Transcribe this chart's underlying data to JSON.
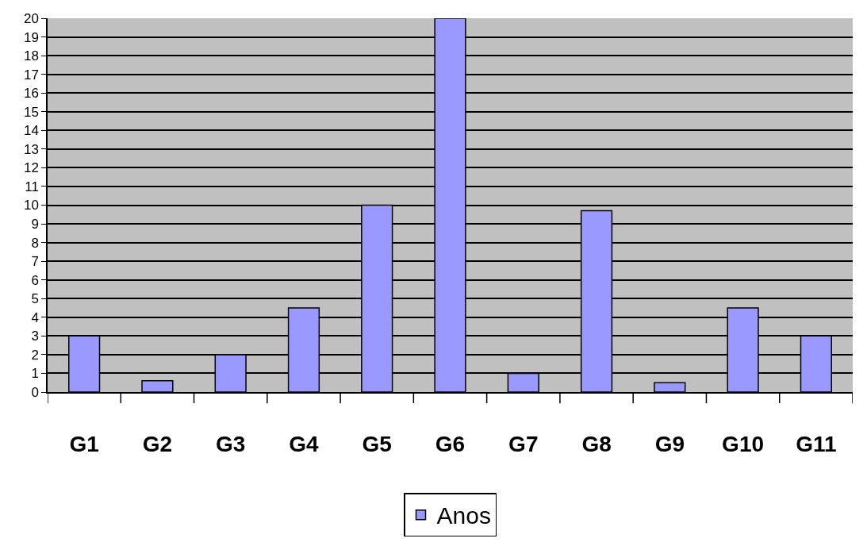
{
  "chart_data": {
    "type": "bar",
    "categories": [
      "G1",
      "G2",
      "G3",
      "G4",
      "G5",
      "G6",
      "G7",
      "G8",
      "G9",
      "G10",
      "G11"
    ],
    "series": [
      {
        "name": "Anos",
        "color": "#9999ff",
        "values": [
          3,
          0.6,
          2,
          4.5,
          10,
          20,
          1,
          9.7,
          0.5,
          4.5,
          3
        ]
      }
    ],
    "ylim": [
      0,
      20
    ],
    "yticks": [
      0,
      1,
      2,
      3,
      4,
      5,
      6,
      7,
      8,
      9,
      10,
      11,
      12,
      13,
      14,
      15,
      16,
      17,
      18,
      19,
      20
    ],
    "grid": "y",
    "legend": "bottom"
  }
}
